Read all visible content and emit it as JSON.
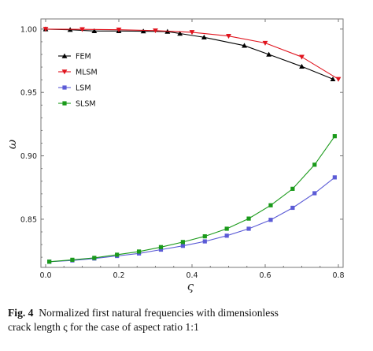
{
  "chart_data": {
    "type": "line",
    "xlabel": "ς",
    "ylabel": "ω",
    "xlim": [
      0,
      0.8
    ],
    "ylim": [
      0.812,
      1.008
    ],
    "x_ticks": [
      0.0,
      0.2,
      0.4,
      0.6,
      0.8
    ],
    "x_tick_labels": [
      "0.0",
      "0.2",
      "0.4",
      "0.6",
      "0.8"
    ],
    "y_ticks": [
      0.85,
      0.9,
      0.95,
      1.0
    ],
    "y_tick_labels": [
      "0.85",
      "0.90",
      "0.95",
      "1.00"
    ],
    "legend_position": "upper-left",
    "series": [
      {
        "name": "FEM",
        "color": "#000000",
        "marker": "triangle-up",
        "x": [
          0.0,
          0.067,
          0.133,
          0.2,
          0.267,
          0.333,
          0.367,
          0.433,
          0.543,
          0.61,
          0.7,
          0.785
        ],
        "y": [
          1.0,
          0.9995,
          0.9985,
          0.9985,
          0.9983,
          0.998,
          0.9965,
          0.9935,
          0.987,
          0.98,
          0.9705,
          0.9605
        ]
      },
      {
        "name": "MLSM",
        "color": "#e0141e",
        "marker": "triangle-down",
        "x": [
          0.0,
          0.1,
          0.2,
          0.3,
          0.4,
          0.5,
          0.6,
          0.7,
          0.8
        ],
        "y": [
          1.0,
          0.9998,
          0.9995,
          0.9988,
          0.9975,
          0.9945,
          0.989,
          0.978,
          0.9605
        ]
      },
      {
        "name": "LSM",
        "color": "#5b5bd6",
        "marker": "square",
        "x": [
          0.01,
          0.073,
          0.133,
          0.195,
          0.255,
          0.315,
          0.375,
          0.435,
          0.495,
          0.555,
          0.615,
          0.675,
          0.735,
          0.79
        ],
        "y": [
          0.8165,
          0.8175,
          0.819,
          0.821,
          0.823,
          0.826,
          0.829,
          0.8325,
          0.837,
          0.8425,
          0.8495,
          0.859,
          0.8705,
          0.883
        ]
      },
      {
        "name": "SLSM",
        "color": "#1a9a1a",
        "marker": "square",
        "x": [
          0.01,
          0.073,
          0.133,
          0.195,
          0.255,
          0.315,
          0.375,
          0.435,
          0.495,
          0.555,
          0.615,
          0.675,
          0.735,
          0.79
        ],
        "y": [
          0.8165,
          0.818,
          0.8195,
          0.822,
          0.8245,
          0.828,
          0.832,
          0.8365,
          0.8425,
          0.8505,
          0.861,
          0.874,
          0.893,
          0.9155
        ]
      }
    ]
  },
  "caption": {
    "label": "Fig. 4",
    "line1": "Normalized first natural frequencies with dimensionless",
    "line2": "crack length ς for the case of aspect ratio 1:1"
  }
}
